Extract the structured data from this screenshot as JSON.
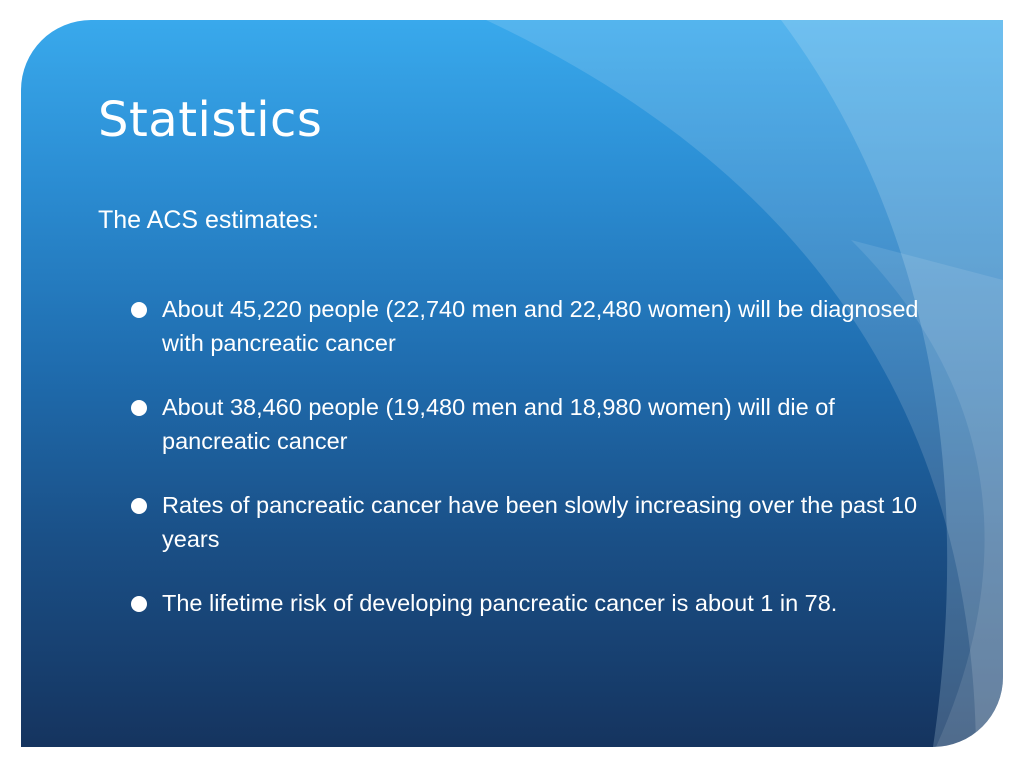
{
  "slide": {
    "title": "Statistics",
    "intro": "The ACS estimates:",
    "bullets": [
      "About 45,220 people (22,740 men and 22,480 women) will be diagnosed with pancreatic cancer",
      "About 38,460 people (19,480 men and 18,980 women) will die of pancreatic cancer",
      "Rates of pancreatic cancer have been slowly increasing over the past 10 years",
      "The lifetime risk of developing pancreatic cancer is about 1 in 78."
    ]
  },
  "colors": {
    "background_top": "#39a9ec",
    "background_bottom": "#15345f",
    "text": "#ffffff"
  }
}
